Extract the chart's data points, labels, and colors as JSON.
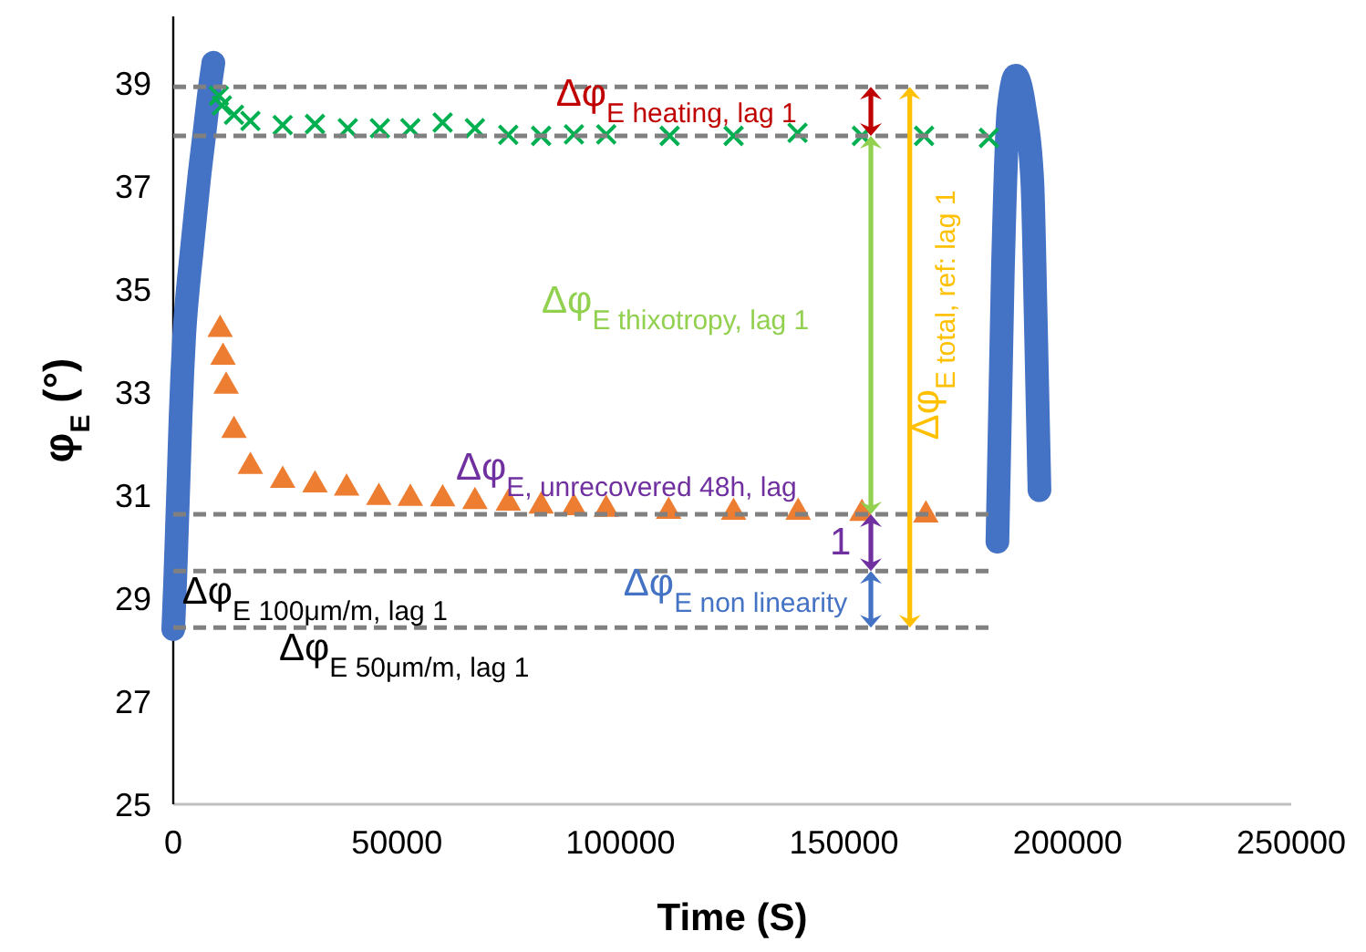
{
  "chart_data": {
    "type": "scatter",
    "xlabel": "Time (S)",
    "ylabel": "φ$_{E}$ (°)",
    "xlim": [
      0,
      250000
    ],
    "xticks": [
      0,
      50000,
      100000,
      150000,
      200000,
      250000
    ],
    "ylim": [
      25,
      40.3
    ],
    "yticks": [
      25,
      27,
      29,
      31,
      33,
      35,
      37,
      39
    ],
    "grid": false,
    "series": [
      {
        "type": "line",
        "color": "#4472c4",
        "x": [
          0,
          410,
          820,
          1220,
          1630,
          2040,
          2450,
          3260,
          4080,
          4890,
          5710,
          6930,
          8160,
          8970
        ],
        "values": [
          28.4,
          29.3,
          30.35,
          31.4,
          32.5,
          33.4,
          34.1,
          35.0,
          35.7,
          36.4,
          37.1,
          38.0,
          38.9,
          39.4
        ]
      },
      {
        "type": "line",
        "color": "#4472c4",
        "x": [
          184300,
          185500,
          186800,
          188400,
          190400,
          192100,
          192900,
          193700
        ],
        "values": [
          30.1,
          35.3,
          38.5,
          39.15,
          38.5,
          37.1,
          34.3,
          31.1
        ]
      },
      {
        "marker": "cross",
        "color": "#00b050",
        "x": [
          10200,
          10890,
          13580,
          17250,
          24470,
          31690,
          39030,
          46210,
          53020,
          60240,
          67460,
          74920,
          82260,
          89600,
          96820,
          111000,
          125300,
          139600,
          154000,
          167900,
          182400
        ],
        "values": [
          38.76,
          38.57,
          38.39,
          38.27,
          38.19,
          38.21,
          38.13,
          38.13,
          38.13,
          38.24,
          38.13,
          38.0,
          37.98,
          38.01,
          38.01,
          37.98,
          37.98,
          38.04,
          37.98,
          37.98,
          37.94
        ]
      },
      {
        "marker": "triangle",
        "color": "#ed7d31",
        "x": [
          10480,
          11130,
          11830,
          13580,
          17250,
          24470,
          31690,
          38760,
          45970,
          53020,
          60240,
          67460,
          74920,
          82260,
          89600,
          96820,
          110780,
          125300,
          139740,
          154000,
          168300
        ],
        "values": [
          34.26,
          33.72,
          33.16,
          32.3,
          31.6,
          31.33,
          31.24,
          31.18,
          31.0,
          30.98,
          30.97,
          30.92,
          30.89,
          30.83,
          30.8,
          30.77,
          30.73,
          30.71,
          30.71,
          30.69,
          30.66
        ]
      },
      {
        "type": "line",
        "line_style": "dashed",
        "color": "#808080",
        "x": [
          0,
          183500
        ],
        "values": [
          38.93,
          38.93
        ]
      },
      {
        "type": "line",
        "line_style": "dashed",
        "color": "#808080",
        "x": [
          0,
          183500
        ],
        "values": [
          37.98,
          37.98
        ]
      },
      {
        "type": "line",
        "line_style": "dashed",
        "color": "#808080",
        "x": [
          0,
          183500
        ],
        "values": [
          30.63,
          30.63
        ]
      },
      {
        "type": "line",
        "line_style": "dashed",
        "color": "#808080",
        "x": [
          0,
          183500
        ],
        "values": [
          29.53,
          29.53
        ]
      },
      {
        "type": "line",
        "line_style": "dashed",
        "color": "#808080",
        "x": [
          0,
          183500
        ],
        "values": [
          28.43,
          28.43
        ]
      }
    ],
    "annotations": [
      "Δφ$_{E heating, lag 1}$",
      "Δφ$_{E thixotropy, lag 1}$",
      "Δφ$_{E total, ref: lag 1}$",
      "Δφ$_{E, unrecovered 48h, lag}$",
      "1",
      "Δφ$_{E non linearity}$",
      "Δφ$_{E 100μm/m, lag 1}$",
      "Δφ$_{E 50μm/m, lag 1}$"
    ]
  }
}
